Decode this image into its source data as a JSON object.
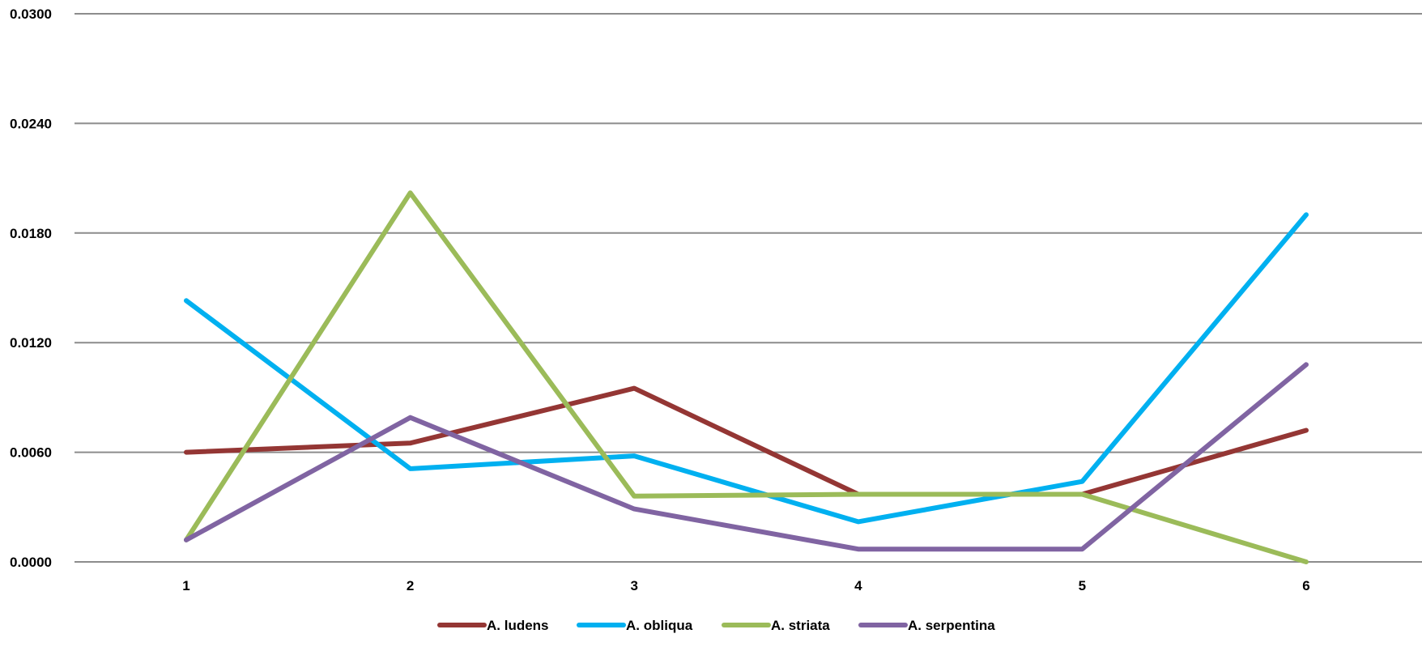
{
  "chart_data": {
    "type": "line",
    "title": "",
    "xlabel": "",
    "ylabel": "",
    "categories": [
      "1",
      "2",
      "3",
      "4",
      "5",
      "6"
    ],
    "ylim": [
      0,
      0.03
    ],
    "y_ticks": [
      "0.0000",
      "0.0060",
      "0.0120",
      "0.0180",
      "0.0240",
      "0.0300"
    ],
    "y_tick_values": [
      0,
      0.006,
      0.012,
      0.018,
      0.024,
      0.03
    ],
    "grid": true,
    "legend_position": "bottom",
    "series": [
      {
        "name": "A. ludens",
        "color": "#943634",
        "values": [
          0.006,
          0.0065,
          0.0095,
          0.0037,
          0.0037,
          0.0072
        ]
      },
      {
        "name": "A. obliqua",
        "color": "#00B0F0",
        "values": [
          0.0143,
          0.0051,
          0.0058,
          0.0022,
          0.0044,
          0.019
        ]
      },
      {
        "name": "A. striata",
        "color": "#9BBB59",
        "values": [
          0.0012,
          0.0202,
          0.0036,
          0.0037,
          0.0037,
          0.0
        ]
      },
      {
        "name": "A. serpentina",
        "color": "#8064A2",
        "values": [
          0.0012,
          0.0079,
          0.0029,
          0.0007,
          0.0007,
          0.0108
        ]
      }
    ]
  }
}
